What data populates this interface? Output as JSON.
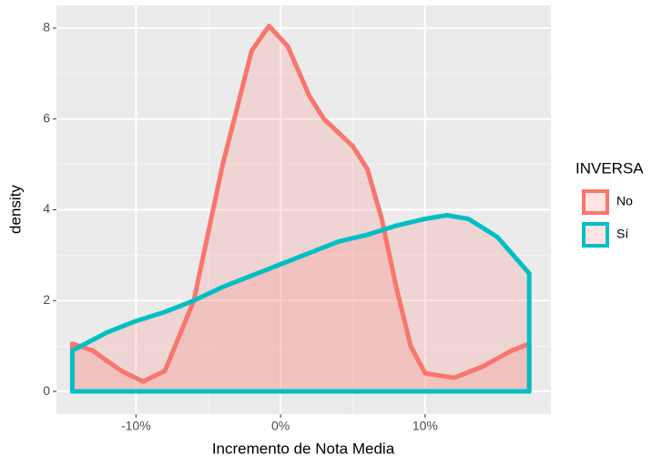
{
  "chart_data": {
    "type": "density",
    "x_label": "Incremento de Nota Media",
    "y_label": "density",
    "legend_title": "INVERSA",
    "legend_position": "right",
    "grid": true,
    "fill_color": "#f8766d",
    "xlim": [
      -15.5,
      18.7
    ],
    "ylim": [
      -0.5,
      8.5
    ],
    "xticks": [
      {
        "value": -10,
        "label": "-10%"
      },
      {
        "value": 0,
        "label": "0%"
      },
      {
        "value": 10,
        "label": "10%"
      }
    ],
    "yticks": [
      0,
      2,
      4,
      6,
      8
    ],
    "series": [
      {
        "name": "No",
        "color": "#f8766d",
        "x": [
          -14.4,
          -13,
          -11,
          -9.5,
          -8,
          -6,
          -4,
          -2,
          -0.8,
          0.5,
          2,
          3,
          5,
          6,
          7,
          8,
          9,
          10,
          12,
          14,
          16,
          17.2
        ],
        "values": [
          1.05,
          0.9,
          0.45,
          0.22,
          0.45,
          2.0,
          5.0,
          7.5,
          8.05,
          7.6,
          6.5,
          6.0,
          5.4,
          4.9,
          3.8,
          2.3,
          1.0,
          0.4,
          0.3,
          0.55,
          0.9,
          1.05
        ]
      },
      {
        "name": "Sí",
        "color": "#00bfc4",
        "x": [
          -14.4,
          -12,
          -10,
          -8,
          -6,
          -4,
          -2,
          0,
          2,
          4,
          6,
          8,
          10,
          11.5,
          13,
          15,
          17.2
        ],
        "values": [
          0.9,
          1.3,
          1.55,
          1.75,
          2.0,
          2.3,
          2.55,
          2.8,
          3.05,
          3.3,
          3.45,
          3.65,
          3.8,
          3.88,
          3.8,
          3.4,
          2.6
        ]
      }
    ]
  }
}
